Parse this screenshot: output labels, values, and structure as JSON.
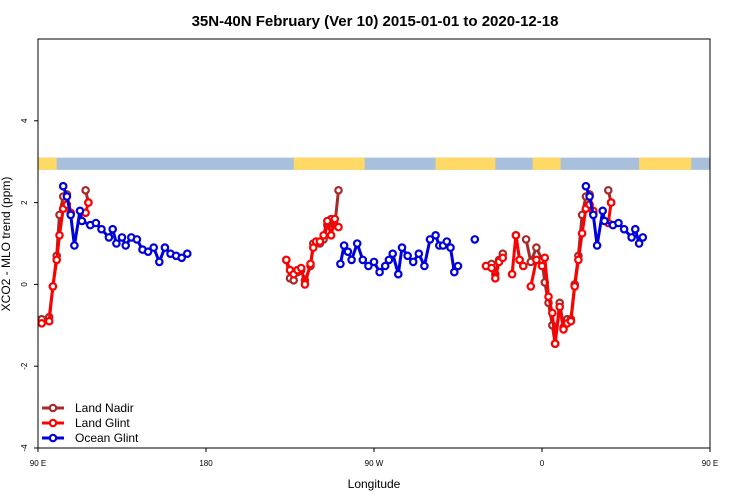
{
  "chart_data": {
    "type": "line",
    "title": "35N-40N February (Ver 10)   2015-01-01 to 2020-12-18",
    "xlabel": "Longitude",
    "ylabel": "XCO2 - MLO trend (ppm)",
    "xlim": [
      90,
      450
    ],
    "ylim": [
      -4,
      6
    ],
    "xticks": [
      {
        "value": 90,
        "label": "90 E"
      },
      {
        "value": 180,
        "label": "180"
      },
      {
        "value": 270,
        "label": "90 W"
      },
      {
        "value": 360,
        "label": "0"
      },
      {
        "value": 450,
        "label": "90 E"
      },
      {
        "value": 540,
        "label": "180"
      }
    ],
    "yticks": [
      {
        "value": -4,
        "label": "-4"
      },
      {
        "value": -2,
        "label": "-2"
      },
      {
        "value": 0,
        "label": "0"
      },
      {
        "value": 2,
        "label": "2"
      },
      {
        "value": 4,
        "label": "4"
      }
    ],
    "grid": false,
    "legend_position": "bottom-left",
    "land_ocean_band": {
      "y_range": [
        2.8,
        3.1
      ],
      "land_color": "#FFD966",
      "ocean_color": "#A9C0DD",
      "land_segments": [
        [
          90,
          100
        ],
        [
          227,
          265
        ],
        [
          303,
          335
        ],
        [
          355,
          370
        ],
        [
          412,
          440
        ],
        [
          463,
          480
        ]
      ]
    },
    "series": [
      {
        "name": "Land Nadir",
        "color": "#A52A2A",
        "segments": [
          [
            [
              92,
              -0.85
            ],
            [
              96,
              -0.8
            ],
            [
              98,
              -0.05
            ],
            [
              100,
              0.7
            ],
            [
              101.5,
              1.7
            ],
            [
              103.5,
              2.15
            ],
            [
              105.5,
              2.2
            ],
            [
              107.5,
              1.75
            ]
          ],
          [
            [
              115.5,
              2.3
            ],
            [
              117,
              2.0
            ]
          ],
          [
            [
              223,
              0.6
            ],
            [
              225,
              0.15
            ],
            [
              227,
              0.1
            ],
            [
              229,
              0.3
            ],
            [
              231,
              0.35
            ],
            [
              233,
              0.1
            ],
            [
              236,
              0.45
            ],
            [
              237.5,
              1.0
            ],
            [
              239,
              1.05
            ],
            [
              241,
              1.0
            ],
            [
              243,
              1.1
            ],
            [
              245,
              1.45
            ],
            [
              247,
              1.6
            ],
            [
              249,
              1.45
            ],
            [
              251,
              2.3
            ]
          ],
          [
            [
              330,
              0.45
            ],
            [
              333,
              0.5
            ],
            [
              335,
              0.25
            ],
            [
              337,
              0.6
            ],
            [
              339,
              0.75
            ]
          ],
          [
            [
              346,
              1.2
            ],
            [
              348,
              0.6
            ],
            [
              350,
              0.45
            ]
          ],
          [
            [
              351.5,
              1.1
            ],
            [
              354,
              0.55
            ],
            [
              357,
              0.9
            ],
            [
              360,
              0.6
            ],
            [
              361.5,
              0.05
            ],
            [
              363.5,
              -0.45
            ],
            [
              365.5,
              -1.0
            ],
            [
              367,
              -1.45
            ],
            [
              369.5,
              -0.45
            ],
            [
              371.5,
              -1.05
            ],
            [
              373.5,
              -0.85
            ],
            [
              375.5,
              -0.85
            ],
            [
              377.5,
              0.0
            ],
            [
              379.5,
              0.7
            ],
            [
              381.5,
              1.7
            ],
            [
              383.5,
              2.15
            ],
            [
              385.5,
              2.2
            ],
            [
              387.5,
              1.75
            ]
          ],
          [
            [
              395.5,
              2.3
            ],
            [
              397,
              2.0
            ]
          ]
        ]
      },
      {
        "name": "Land Glint",
        "color": "#FF0000",
        "segments": [
          [
            [
              92,
              -0.95
            ],
            [
              96,
              -0.9
            ],
            [
              98,
              -0.05
            ],
            [
              100,
              0.6
            ],
            [
              101.5,
              1.2
            ],
            [
              103.5,
              1.85
            ],
            [
              105.5,
              1.95
            ],
            [
              107.5,
              1.75
            ]
          ],
          [
            [
              115.5,
              1.75
            ],
            [
              117,
              2.0
            ]
          ],
          [
            [
              223,
              0.6
            ],
            [
              225,
              0.35
            ],
            [
              227,
              0.25
            ],
            [
              229,
              0.35
            ],
            [
              231,
              0.4
            ],
            [
              233,
              0.0
            ],
            [
              236,
              0.5
            ],
            [
              237.5,
              0.9
            ],
            [
              239,
              1.05
            ],
            [
              241,
              1.05
            ],
            [
              243,
              1.2
            ],
            [
              245,
              1.55
            ],
            [
              247,
              1.2
            ],
            [
              249,
              1.6
            ],
            [
              251,
              1.4
            ]
          ],
          [
            [
              330,
              0.45
            ],
            [
              333,
              0.4
            ],
            [
              335,
              0.15
            ],
            [
              337,
              0.55
            ],
            [
              339,
              0.65
            ]
          ],
          [
            [
              344,
              0.25
            ],
            [
              346,
              1.2
            ],
            [
              348,
              0.6
            ],
            [
              350,
              0.45
            ]
          ],
          [
            [
              354,
              -0.05
            ],
            [
              357,
              0.6
            ],
            [
              360,
              0.45
            ],
            [
              361.5,
              0.65
            ],
            [
              363.5,
              -0.3
            ],
            [
              365.5,
              -0.7
            ],
            [
              367,
              -1.45
            ],
            [
              369.5,
              -0.55
            ],
            [
              371.5,
              -1.1
            ],
            [
              373.5,
              -0.95
            ],
            [
              375.5,
              -0.9
            ],
            [
              377.5,
              -0.05
            ],
            [
              379.5,
              0.6
            ],
            [
              381.5,
              1.25
            ],
            [
              383.5,
              1.85
            ],
            [
              385.5,
              1.95
            ],
            [
              387.5,
              1.8
            ]
          ],
          [
            [
              395.5,
              1.5
            ],
            [
              397,
              2.0
            ]
          ]
        ]
      },
      {
        "name": "Ocean Glint",
        "color": "#0000DD",
        "segments": [
          [
            [
              103.5,
              2.4
            ],
            [
              105.5,
              2.15
            ],
            [
              107.5,
              1.7
            ],
            [
              109.5,
              0.95
            ],
            [
              112.5,
              1.8
            ],
            [
              113.5,
              1.55
            ],
            [
              118,
              1.45
            ],
            [
              121,
              1.5
            ],
            [
              124,
              1.35
            ],
            [
              128,
              1.15
            ],
            [
              130,
              1.35
            ],
            [
              132,
              1.0
            ],
            [
              135,
              1.15
            ],
            [
              137,
              0.95
            ],
            [
              140,
              1.15
            ],
            [
              143,
              1.1
            ],
            [
              146,
              0.85
            ],
            [
              149,
              0.8
            ],
            [
              152,
              0.9
            ],
            [
              155,
              0.55
            ],
            [
              158,
              0.9
            ],
            [
              161,
              0.75
            ],
            [
              164,
              0.7
            ],
            [
              167,
              0.65
            ],
            [
              170,
              0.75
            ]
          ],
          [
            [
              252,
              0.5
            ],
            [
              254,
              0.95
            ],
            [
              256,
              0.8
            ],
            [
              258,
              0.6
            ],
            [
              261,
              1.0
            ],
            [
              264,
              0.6
            ],
            [
              267,
              0.45
            ],
            [
              270,
              0.55
            ],
            [
              273,
              0.3
            ],
            [
              276,
              0.45
            ],
            [
              278,
              0.6
            ],
            [
              280,
              0.75
            ],
            [
              283,
              0.25
            ],
            [
              285,
              0.9
            ],
            [
              288,
              0.7
            ],
            [
              291,
              0.55
            ],
            [
              294,
              0.75
            ],
            [
              297,
              0.45
            ],
            [
              300,
              1.1
            ],
            [
              303,
              1.2
            ],
            [
              305,
              0.95
            ],
            [
              307,
              0.95
            ],
            [
              309,
              1.05
            ],
            [
              311,
              0.9
            ],
            [
              313,
              0.3
            ],
            [
              315,
              0.45
            ]
          ],
          [
            [
              324,
              1.1
            ]
          ],
          [
            [
              383.5,
              2.4
            ],
            [
              385.5,
              2.15
            ],
            [
              387.5,
              1.7
            ],
            [
              389.5,
              0.95
            ],
            [
              392.5,
              1.8
            ],
            [
              393.5,
              1.55
            ],
            [
              398,
              1.45
            ],
            [
              401,
              1.5
            ],
            [
              404,
              1.35
            ],
            [
              408,
              1.15
            ],
            [
              410,
              1.35
            ],
            [
              412,
              1.0
            ],
            [
              414,
              1.15
            ]
          ]
        ]
      }
    ]
  }
}
